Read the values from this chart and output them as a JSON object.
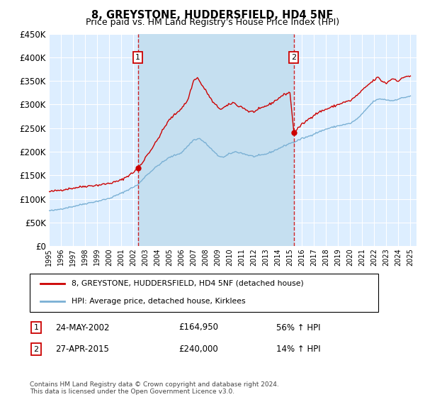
{
  "title": "8, GREYSTONE, HUDDERSFIELD, HD4 5NF",
  "subtitle": "Price paid vs. HM Land Registry's House Price Index (HPI)",
  "background_color": "#ffffff",
  "plot_bg_color": "#ddeeff",
  "highlight_color": "#cce0f5",
  "grid_color": "#ffffff",
  "ylim": [
    0,
    450000
  ],
  "yticks": [
    0,
    50000,
    100000,
    150000,
    200000,
    250000,
    300000,
    350000,
    400000,
    450000
  ],
  "ytick_labels": [
    "£0",
    "£50K",
    "£100K",
    "£150K",
    "£200K",
    "£250K",
    "£300K",
    "£350K",
    "£400K",
    "£450K"
  ],
  "xlim_start": 1995.0,
  "xlim_end": 2025.5,
  "sale1_x": 2002.39,
  "sale1_y": 164950,
  "sale1_label": "1",
  "sale2_x": 2015.32,
  "sale2_y": 240000,
  "sale2_label": "2",
  "line1_color": "#cc0000",
  "line2_color": "#7ab0d4",
  "line1_label": "8, GREYSTONE, HUDDERSFIELD, HD4 5NF (detached house)",
  "line2_label": "HPI: Average price, detached house, Kirklees",
  "legend1_date": "24-MAY-2002",
  "legend1_price": "£164,950",
  "legend1_hpi": "56% ↑ HPI",
  "legend2_date": "27-APR-2015",
  "legend2_price": "£240,000",
  "legend2_hpi": "14% ↑ HPI",
  "footer": "Contains HM Land Registry data © Crown copyright and database right 2024.\nThis data is licensed under the Open Government Licence v3.0.",
  "marker_box_color": "#cc0000",
  "dashed_line_color": "#cc0000"
}
